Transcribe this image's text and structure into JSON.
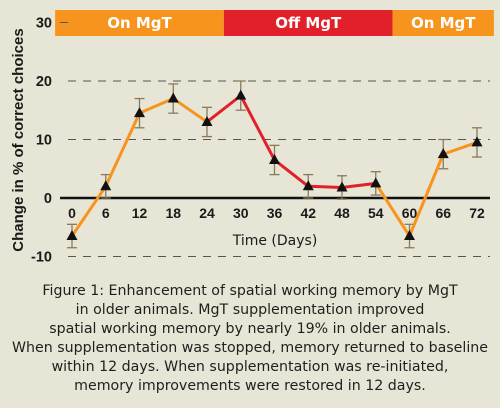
{
  "chart_data": {
    "type": "line",
    "ylabel": "Change in % of correct choices",
    "xlabel": "Time (Days)",
    "x": [
      0,
      6,
      12,
      18,
      24,
      30,
      36,
      42,
      48,
      54,
      60,
      66,
      72
    ],
    "y": [
      -6.5,
      2,
      14.5,
      17,
      13,
      17.5,
      6.5,
      2,
      1.8,
      2.5,
      -6.5,
      7.5,
      9.5
    ],
    "error": [
      2,
      2,
      2.5,
      2.5,
      2.5,
      2.5,
      2.5,
      2,
      2,
      2,
      2,
      2.5,
      2.5
    ],
    "xticks": [
      "0",
      "6",
      "12",
      "18",
      "24",
      "30",
      "36",
      "42",
      "48",
      "54",
      "60",
      "66",
      "72"
    ],
    "yticks": [
      30,
      20,
      10,
      0,
      -10
    ],
    "ylim": [
      -10,
      30
    ],
    "xlim": [
      0,
      72
    ],
    "grid": "dashed horizontal",
    "phases": [
      {
        "label": "On MgT",
        "start": -3,
        "end": 27,
        "color": "#f7941d"
      },
      {
        "label": "Off MgT",
        "start": 27,
        "end": 57,
        "color": "#e2202a"
      },
      {
        "label": "On MgT",
        "start": 57,
        "end": 75,
        "color": "#f7941d"
      }
    ],
    "segment_colors": [
      "#f7941d",
      "#f7941d",
      "#f7941d",
      "#f7941d",
      "#e2202a",
      "#e2202a",
      "#e2202a",
      "#e2202a",
      "#e2202a",
      "#f7941d",
      "#f7941d",
      "#f7941d"
    ]
  },
  "caption": {
    "lines": [
      "Figure 1: Enhancement of spatial working memory by MgT",
      "in older animals. MgT supplementation improved",
      "spatial working memory by nearly 19% in older animals.",
      "When supplementation was stopped, memory returned to baseline",
      "within 12 days. When supplementation was re-initiated,",
      "memory improvements were restored in 12 days."
    ]
  }
}
